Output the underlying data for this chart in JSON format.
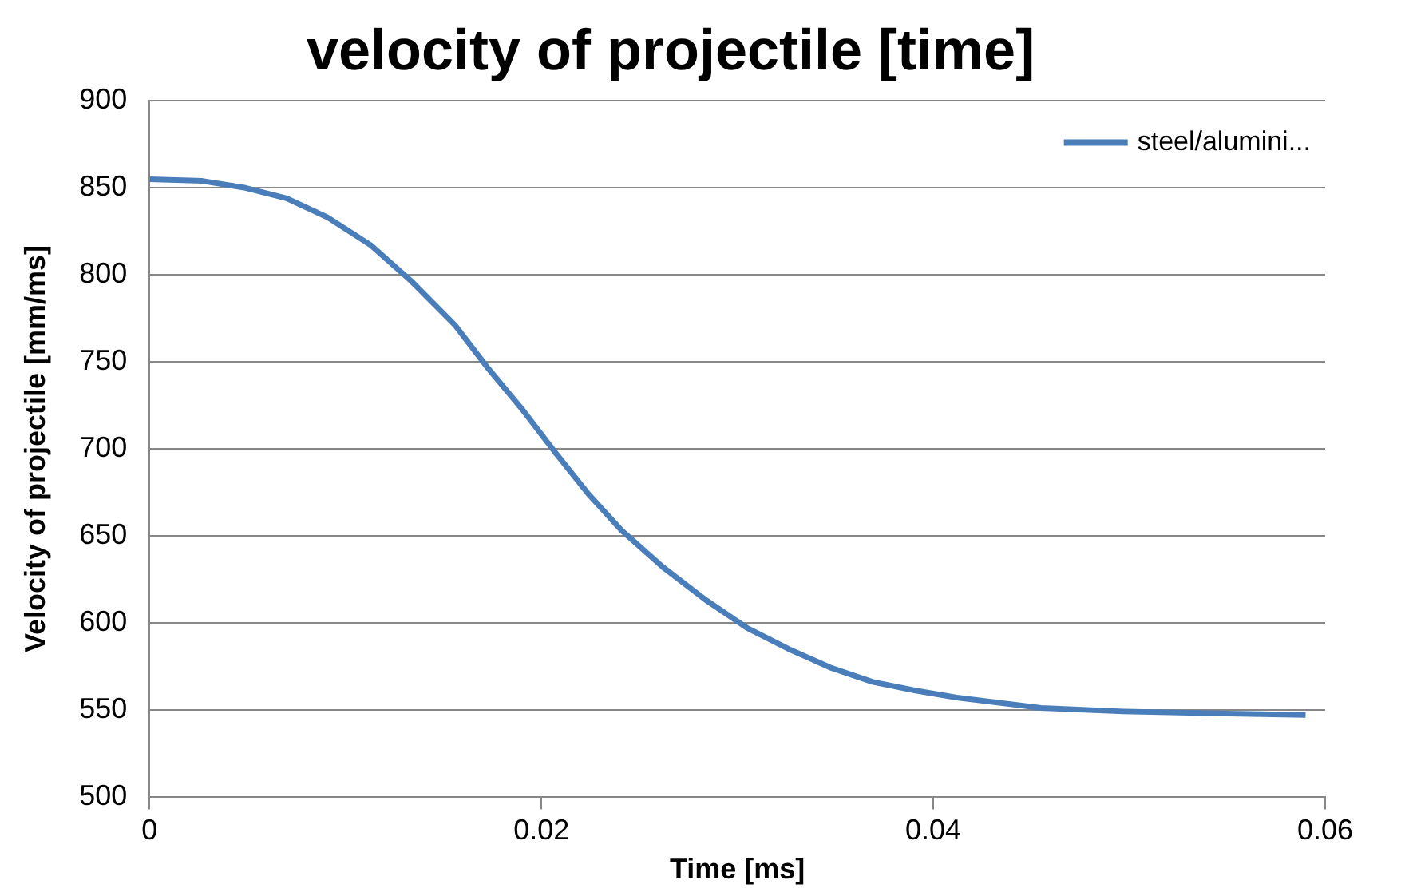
{
  "chart_data": {
    "type": "line",
    "title": "velocity of projectile [time]",
    "xlabel": "Time [ms]",
    "ylabel": "Velocity of projectile [mm/ms]",
    "xlim": [
      0,
      0.06
    ],
    "xticks": [
      0,
      0.02,
      0.04,
      0.06
    ],
    "ylim": [
      500,
      900
    ],
    "yticks": [
      500,
      550,
      600,
      650,
      700,
      750,
      800,
      850,
      900
    ],
    "grid": "y",
    "legend": "top right",
    "marker": "none",
    "line_style": "solid",
    "series": [
      {
        "name": "steel/alumini...",
        "color": "#4a7ebb",
        "x": [
          0,
          0.0027,
          0.0049,
          0.007,
          0.0091,
          0.0113,
          0.0134,
          0.0156,
          0.0173,
          0.019,
          0.0207,
          0.0224,
          0.0241,
          0.0262,
          0.0284,
          0.0305,
          0.0326,
          0.0348,
          0.0369,
          0.0391,
          0.0412,
          0.0455,
          0.0497,
          0.054,
          0.059
        ],
        "values": [
          855,
          854,
          850,
          844,
          833,
          817,
          796,
          771,
          746,
          723,
          698,
          674,
          653,
          632,
          613,
          597,
          585,
          574,
          566,
          561,
          557,
          551,
          549,
          548,
          547
        ]
      }
    ]
  }
}
